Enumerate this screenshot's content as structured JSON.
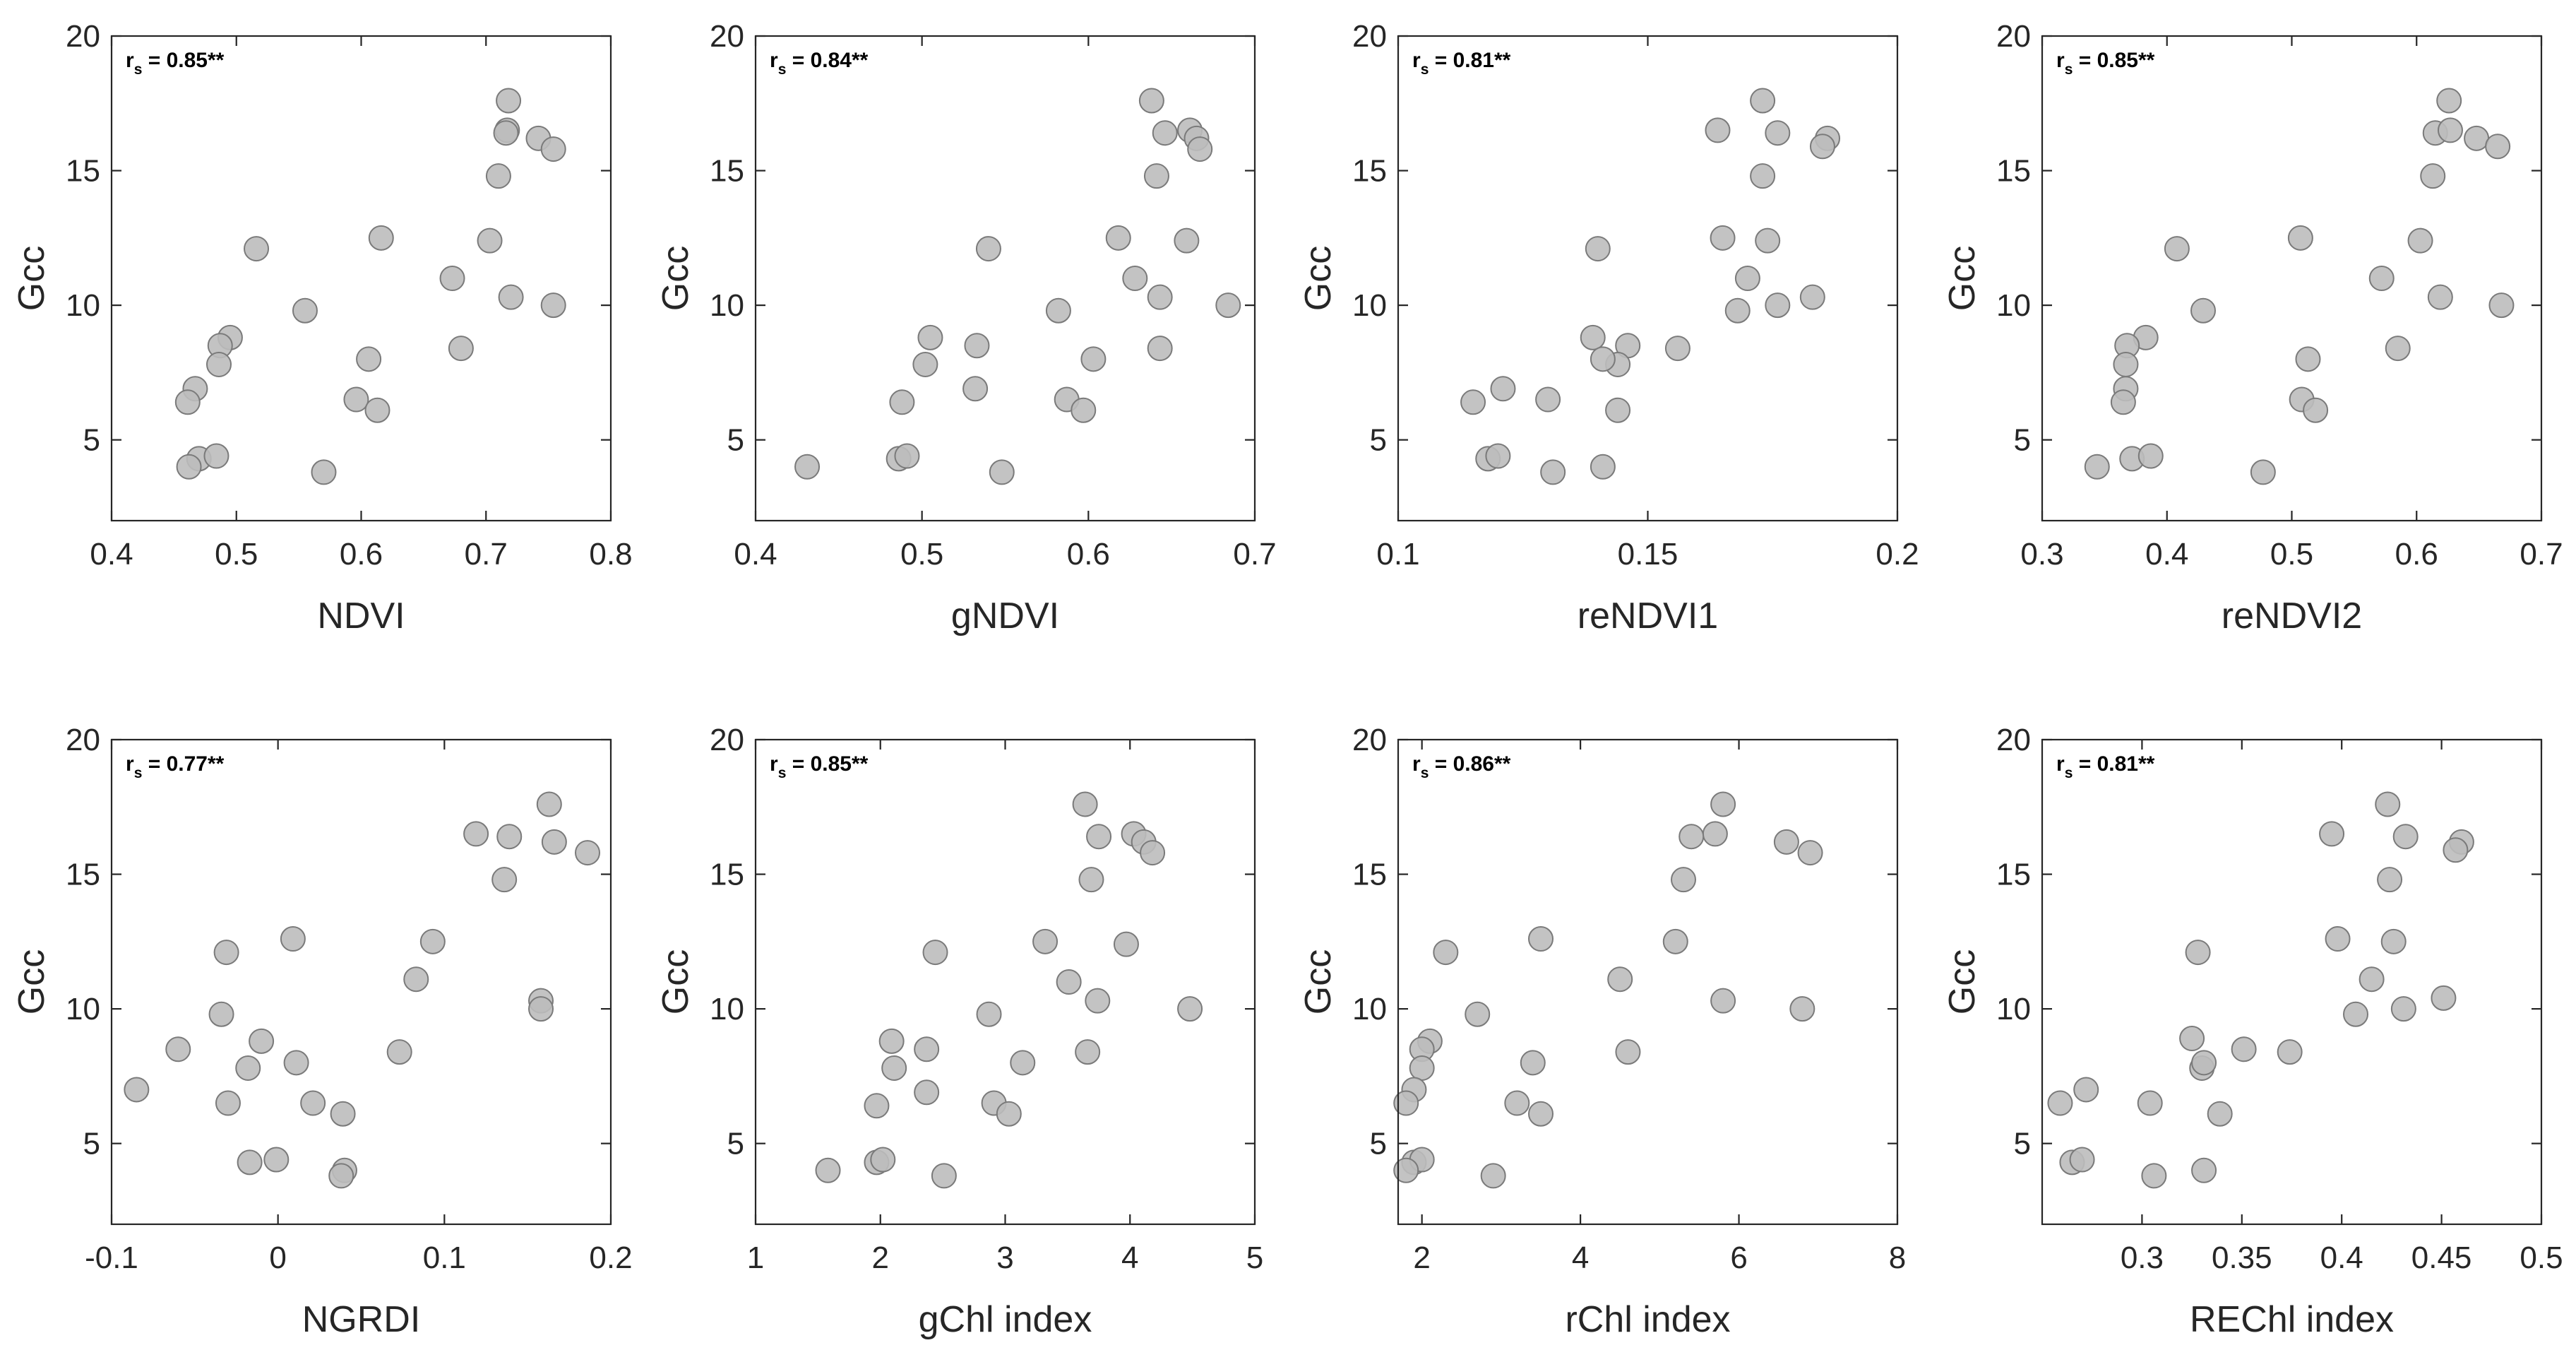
{
  "figure": {
    "marker_fill": "#bdbdbd",
    "marker_edge": "#7a7a7a",
    "axis_color": "#262626"
  },
  "chart_data": [
    {
      "type": "scatter",
      "xlabel": "NDVI",
      "ylabel": "Gcc",
      "stat": {
        "prefix": "r",
        "sub": "s",
        "value": " = 0.85**"
      },
      "xlim": [
        0.4,
        0.8
      ],
      "ylim": [
        2,
        20
      ],
      "xticks": [
        "0.4",
        "0.5",
        "0.6",
        "0.7",
        "0.8"
      ],
      "yticks": [
        "5",
        "10",
        "15",
        "20"
      ],
      "x": [
        0.718,
        0.742,
        0.754,
        0.717,
        0.716,
        0.71,
        0.516,
        0.616,
        0.703,
        0.673,
        0.72,
        0.754,
        0.555,
        0.495,
        0.487,
        0.68,
        0.486,
        0.606,
        0.467,
        0.461,
        0.596,
        0.613,
        0.47,
        0.484,
        0.462,
        0.57
      ],
      "y": [
        17.6,
        16.2,
        15.8,
        16.5,
        16.4,
        14.8,
        12.1,
        12.5,
        12.4,
        11.0,
        10.3,
        10.0,
        9.8,
        8.8,
        8.5,
        8.4,
        7.8,
        8.0,
        6.9,
        6.4,
        6.5,
        6.1,
        4.3,
        4.4,
        4.0,
        3.8
      ]
    },
    {
      "type": "scatter",
      "xlabel": "gNDVI",
      "ylabel": "Gcc",
      "stat": {
        "prefix": "r",
        "sub": "s",
        "value": " = 0.84**"
      },
      "xlim": [
        0.4,
        0.7
      ],
      "ylim": [
        2,
        20
      ],
      "xticks": [
        "0.4",
        "0.5",
        "0.6",
        "0.7"
      ],
      "yticks": [
        "5",
        "10",
        "15",
        "20"
      ],
      "x": [
        0.638,
        0.646,
        0.661,
        0.665,
        0.667,
        0.641,
        0.54,
        0.618,
        0.659,
        0.628,
        0.643,
        0.684,
        0.582,
        0.505,
        0.533,
        0.643,
        0.502,
        0.603,
        0.532,
        0.488,
        0.587,
        0.597,
        0.486,
        0.491,
        0.431,
        0.548
      ],
      "y": [
        17.6,
        16.4,
        16.5,
        16.2,
        15.8,
        14.8,
        12.1,
        12.5,
        12.4,
        11.0,
        10.3,
        10.0,
        9.8,
        8.8,
        8.5,
        8.4,
        7.8,
        8.0,
        6.9,
        6.4,
        6.5,
        6.1,
        4.3,
        4.4,
        4.0,
        3.8
      ]
    },
    {
      "type": "scatter",
      "xlabel": "reNDVI1",
      "ylabel": "Gcc",
      "stat": {
        "prefix": "r",
        "sub": "s",
        "value": " = 0.81**"
      },
      "xlim": [
        0.1,
        0.2
      ],
      "ylim": [
        2,
        20
      ],
      "xticks": [
        "0.1",
        "0.15",
        "0.2"
      ],
      "yticks": [
        "5",
        "10",
        "15",
        "20"
      ],
      "x": [
        0.173,
        0.164,
        0.176,
        0.186,
        0.185,
        0.173,
        0.14,
        0.165,
        0.174,
        0.17,
        0.183,
        0.176,
        0.168,
        0.139,
        0.146,
        0.156,
        0.144,
        0.141,
        0.121,
        0.115,
        0.13,
        0.144,
        0.118,
        0.12,
        0.141,
        0.131
      ],
      "y": [
        17.6,
        16.5,
        16.4,
        16.2,
        15.9,
        14.8,
        12.1,
        12.5,
        12.4,
        11.0,
        10.3,
        10.0,
        9.8,
        8.8,
        8.5,
        8.4,
        7.8,
        8.0,
        6.9,
        6.4,
        6.5,
        6.1,
        4.3,
        4.4,
        4.0,
        3.8
      ]
    },
    {
      "type": "scatter",
      "xlabel": "reNDVI2",
      "ylabel": "Gcc",
      "stat": {
        "prefix": "r",
        "sub": "s",
        "value": " = 0.85**"
      },
      "xlim": [
        0.3,
        0.7
      ],
      "ylim": [
        2,
        20
      ],
      "xticks": [
        "0.3",
        "0.4",
        "0.5",
        "0.6",
        "0.7"
      ],
      "yticks": [
        "5",
        "10",
        "15",
        "20"
      ],
      "x": [
        0.626,
        0.615,
        0.627,
        0.648,
        0.665,
        0.613,
        0.408,
        0.507,
        0.603,
        0.572,
        0.619,
        0.668,
        0.429,
        0.383,
        0.368,
        0.585,
        0.367,
        0.513,
        0.367,
        0.365,
        0.508,
        0.519,
        0.372,
        0.387,
        0.344,
        0.477
      ],
      "y": [
        17.6,
        16.4,
        16.5,
        16.2,
        15.9,
        14.8,
        12.1,
        12.5,
        12.4,
        11.0,
        10.3,
        10.0,
        9.8,
        8.8,
        8.5,
        8.4,
        7.8,
        8.0,
        6.9,
        6.4,
        6.5,
        6.1,
        4.3,
        4.4,
        4.0,
        3.8
      ]
    },
    {
      "type": "scatter",
      "xlabel": "NGRDI",
      "ylabel": "Gcc",
      "stat": {
        "prefix": "r",
        "sub": "s",
        "value": " = 0.77**"
      },
      "xlim": [
        -0.1,
        0.2
      ],
      "ylim": [
        2,
        20
      ],
      "xticks": [
        "-0.1",
        "0",
        "0.1",
        "0.2"
      ],
      "yticks": [
        "5",
        "10",
        "15",
        "20"
      ],
      "x": [
        0.163,
        0.119,
        0.139,
        0.166,
        0.186,
        0.136,
        -0.031,
        0.009,
        0.093,
        0.083,
        0.158,
        0.158,
        -0.034,
        -0.01,
        -0.06,
        0.073,
        -0.018,
        0.011,
        -0.085,
        -0.03,
        0.021,
        0.039,
        -0.017,
        -0.001,
        0.04,
        0.038
      ],
      "y": [
        17.6,
        16.5,
        16.4,
        16.2,
        15.8,
        14.8,
        12.1,
        12.6,
        12.5,
        11.1,
        10.3,
        10.0,
        9.8,
        8.8,
        8.5,
        8.4,
        7.8,
        8.0,
        7.0,
        6.5,
        6.5,
        6.1,
        4.3,
        4.4,
        4.0,
        3.8
      ]
    },
    {
      "type": "scatter",
      "xlabel": "gChl index",
      "ylabel": "Gcc",
      "stat": {
        "prefix": "r",
        "sub": "s",
        "value": " = 0.85**"
      },
      "xlim": [
        1,
        5
      ],
      "ylim": [
        2,
        20
      ],
      "xticks": [
        "1",
        "2",
        "3",
        "4",
        "5"
      ],
      "yticks": [
        "5",
        "10",
        "15",
        "20"
      ],
      "x": [
        3.64,
        4.03,
        3.75,
        4.11,
        4.18,
        3.69,
        2.44,
        3.32,
        3.97,
        3.51,
        3.74,
        4.48,
        2.87,
        2.09,
        2.37,
        3.66,
        2.11,
        3.14,
        2.37,
        1.97,
        2.91,
        3.03,
        1.97,
        2.02,
        1.58,
        2.51
      ],
      "y": [
        17.6,
        16.5,
        16.4,
        16.2,
        15.8,
        14.8,
        12.1,
        12.5,
        12.4,
        11.0,
        10.3,
        10.0,
        9.8,
        8.8,
        8.5,
        8.4,
        7.8,
        8.0,
        6.9,
        6.4,
        6.5,
        6.1,
        4.3,
        4.4,
        4.0,
        3.8
      ]
    },
    {
      "type": "scatter",
      "xlabel": "rChl index",
      "ylabel": "Gcc",
      "stat": {
        "prefix": "r",
        "sub": "s",
        "value": " = 0.86**"
      },
      "xlim": [
        1.7,
        8
      ],
      "ylim": [
        2,
        20
      ],
      "xticks": [
        "2",
        "4",
        "6",
        "8"
      ],
      "yticks": [
        "5",
        "10",
        "15",
        "20"
      ],
      "x": [
        5.8,
        5.7,
        5.4,
        6.6,
        6.9,
        5.3,
        2.3,
        3.5,
        5.2,
        4.5,
        5.8,
        6.8,
        2.7,
        2.1,
        2.0,
        4.6,
        2.0,
        3.4,
        1.9,
        1.8,
        3.2,
        3.5,
        1.9,
        2.0,
        1.8,
        2.9
      ],
      "y": [
        17.6,
        16.5,
        16.4,
        16.2,
        15.8,
        14.8,
        12.1,
        12.6,
        12.5,
        11.1,
        10.3,
        10.0,
        9.8,
        8.8,
        8.5,
        8.4,
        7.8,
        8.0,
        7.0,
        6.5,
        6.5,
        6.1,
        4.3,
        4.4,
        4.0,
        3.8
      ]
    },
    {
      "type": "scatter",
      "xlabel": "REChl index",
      "ylabel": "Gcc",
      "stat": {
        "prefix": "r",
        "sub": "s",
        "value": " = 0.81**"
      },
      "xlim": [
        0.25,
        0.5
      ],
      "ylim": [
        2,
        20
      ],
      "xticks": [
        "0.3",
        "0.35",
        "0.4",
        "0.45",
        "0.5"
      ],
      "yticks": [
        "5",
        "10",
        "15",
        "20"
      ],
      "x": [
        0.423,
        0.395,
        0.432,
        0.46,
        0.457,
        0.424,
        0.328,
        0.398,
        0.426,
        0.415,
        0.451,
        0.431,
        0.407,
        0.325,
        0.351,
        0.374,
        0.33,
        0.331,
        0.272,
        0.259,
        0.304,
        0.339,
        0.265,
        0.27,
        0.331,
        0.306
      ],
      "y": [
        17.6,
        16.5,
        16.4,
        16.2,
        15.9,
        14.8,
        12.1,
        12.6,
        12.5,
        11.1,
        10.4,
        10.0,
        9.8,
        8.9,
        8.5,
        8.4,
        7.8,
        8.0,
        7.0,
        6.5,
        6.5,
        6.1,
        4.3,
        4.4,
        4.0,
        3.8
      ]
    }
  ]
}
